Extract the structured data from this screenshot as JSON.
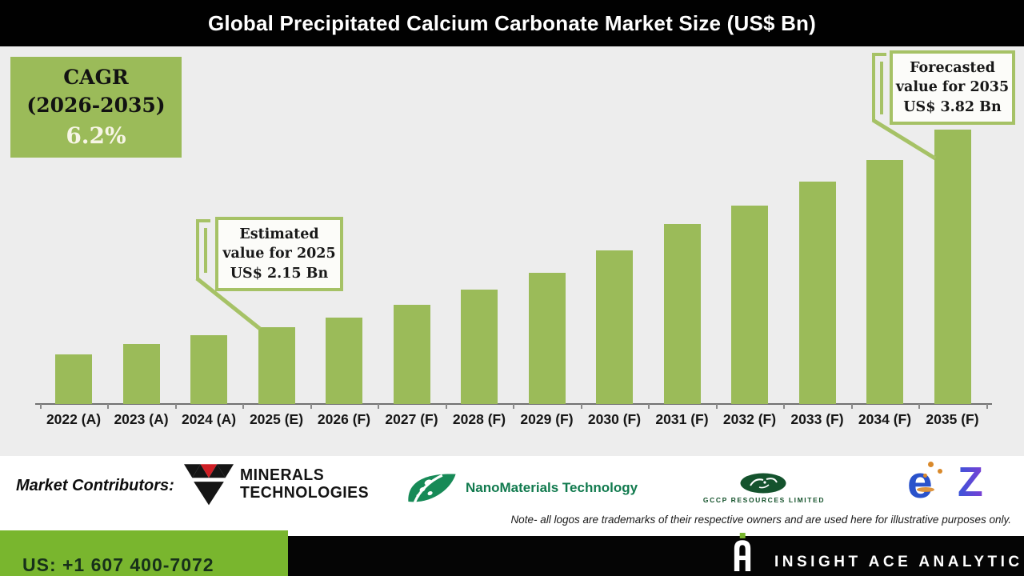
{
  "title_bar": {
    "title": "Global Precipitated Calcium Carbonate Market Size (US$ Bn)"
  },
  "cagr_box": {
    "line1": "CAGR",
    "line2": "(2026-2035)",
    "line3": "6.2%"
  },
  "callouts": {
    "estimated": {
      "line1": "Estimated",
      "line2": "value for 2025",
      "line3": "US$ 2.15 Bn"
    },
    "forecasted": {
      "line1": "Forecasted",
      "line2": "value for 2035",
      "line3": "US$ 3.82 Bn"
    }
  },
  "chart_data": {
    "type": "bar",
    "title": "Global Precipitated Calcium Carbonate Market Size (US$ Bn)",
    "unit": "US$ Bn",
    "categories": [
      "2022 (A)",
      "2023 (A)",
      "2024 (A)",
      "2025 (E)",
      "2026 (F)",
      "2027 (F)",
      "2028 (F)",
      "2029 (F)",
      "2030 (F)",
      "2031 (F)",
      "2032 (F)",
      "2033 (F)",
      "2034 (F)",
      "2035 (F)"
    ],
    "values": [
      1.92,
      2.01,
      2.08,
      2.15,
      2.23,
      2.34,
      2.47,
      2.61,
      2.8,
      3.02,
      3.18,
      3.38,
      3.56,
      3.82
    ],
    "known_values": {
      "2025 (E)": 2.15,
      "2035 (F)": 3.82
    },
    "cagr_2026_2035_pct": 6.2,
    "bar_color": "#9bbb59",
    "axis_baseline_value": 1.5,
    "ylim": [
      1.5,
      3.9
    ],
    "grid": false,
    "legend": "none",
    "annotations": [
      "Estimated value for 2025 US$ 2.15 Bn",
      "Forecasted value for 2035 US$ 3.82 Bn"
    ]
  },
  "contributors": {
    "label": "Market Contributors:",
    "minerals": {
      "name": "Minerals Technologies",
      "text1": "MINERALS",
      "text2": "TECHNOLOGIES"
    },
    "nano": {
      "name": "NanoMaterials Technology",
      "text": "NanoMaterials Technology"
    },
    "gccp": {
      "name": "GCCP Resources Limited",
      "text": "GCCP RESOURCES LIMITED"
    },
    "ez": {
      "name": "eZ",
      "text_e": "e",
      "text_z": "Z"
    },
    "note": "Note- all logos are trademarks of their respective owners and are used here for illustrative purposes only."
  },
  "footer": {
    "phone": "US: +1 607 400-7072",
    "brand": "INSIGHT ACE ANALYTIC"
  },
  "colors": {
    "bar_green": "#9bbb59",
    "callout_border": "#a6c266",
    "footer_green": "#79b62e",
    "chart_bg": "#ededed",
    "title_bg": "#010101",
    "nano_green": "#117a4e",
    "gccp_green": "#14532d",
    "ez_blue": "#2a52cb",
    "ez_purple": "#7a3fd4",
    "ez_orange": "#d9892b"
  }
}
